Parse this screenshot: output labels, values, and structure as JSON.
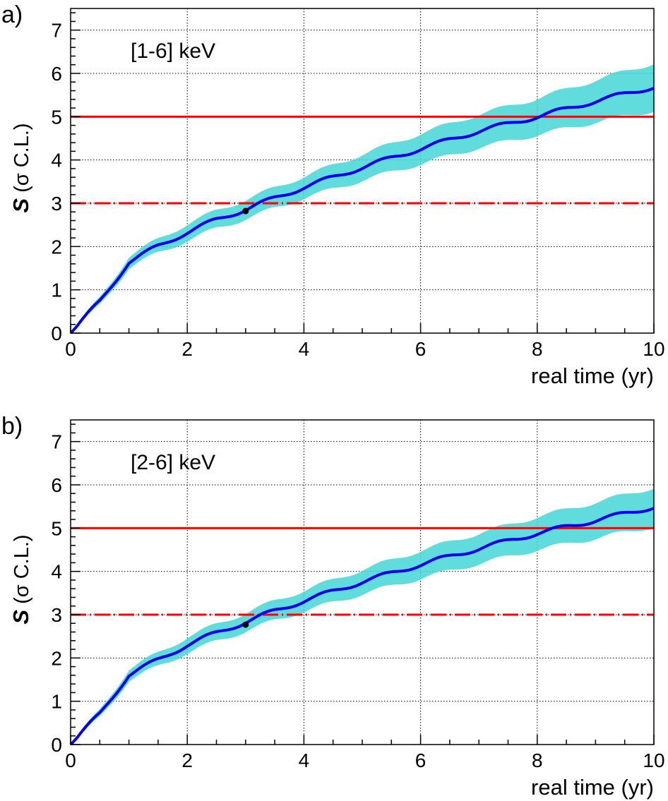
{
  "chart_data": [
    {
      "panel_tag": "a)",
      "type": "line",
      "annotation": "[1-6] keV",
      "xlabel": "real time (yr)",
      "ylabel_symbol": "S",
      "ylabel_unit": "(σ C.L.)",
      "xlim": [
        0,
        10
      ],
      "ylim": [
        0,
        7.5
      ],
      "grid": true,
      "x_ticks": [
        "0",
        "2",
        "4",
        "6",
        "8",
        "10"
      ],
      "y_ticks": [
        "0",
        "1",
        "2",
        "3",
        "4",
        "5",
        "6",
        "7"
      ],
      "reference_lines": [
        {
          "y": 5,
          "style": "solid",
          "color": "#ff0000"
        },
        {
          "y": 3,
          "style": "dash-dot",
          "color": "#ff0000"
        }
      ],
      "point": {
        "x": 3.0,
        "y": 2.82
      },
      "band_color": "#44d6d6",
      "line_color": "#0000ee",
      "curve": {
        "x": [
          0,
          0.5,
          1,
          1.5,
          2,
          2.5,
          3,
          3.5,
          4,
          5,
          6,
          7,
          8,
          9,
          10
        ],
        "y": [
          0,
          0.73,
          1.64,
          2.01,
          2.33,
          2.62,
          2.86,
          3.12,
          3.37,
          3.83,
          4.26,
          4.67,
          5.0,
          5.36,
          5.69
        ]
      },
      "band_halfwidth": {
        "x": [
          0,
          1,
          2,
          4,
          6,
          8,
          10
        ],
        "hw": [
          0.03,
          0.13,
          0.19,
          0.25,
          0.35,
          0.42,
          0.55
        ]
      }
    },
    {
      "panel_tag": "b)",
      "type": "line",
      "annotation": "[2-6] keV",
      "xlabel": "real time (yr)",
      "ylabel_symbol": "S",
      "ylabel_unit": "(σ C.L.)",
      "xlim": [
        0,
        10
      ],
      "ylim": [
        0,
        7.5
      ],
      "grid": true,
      "x_ticks": [
        "0",
        "2",
        "4",
        "6",
        "8",
        "10"
      ],
      "y_ticks": [
        "0",
        "1",
        "2",
        "3",
        "4",
        "5",
        "6",
        "7"
      ],
      "reference_lines": [
        {
          "y": 5,
          "style": "solid",
          "color": "#ff0000"
        },
        {
          "y": 3,
          "style": "dash-dot",
          "color": "#ff0000"
        }
      ],
      "point": {
        "x": 3.0,
        "y": 2.77
      },
      "band_color": "#44d6d6",
      "line_color": "#0000ee",
      "curve": {
        "x": [
          0,
          0.5,
          1,
          1.5,
          2,
          2.5,
          3,
          3.5,
          4,
          5,
          6,
          7,
          8,
          9,
          10
        ],
        "y": [
          0,
          0.71,
          1.61,
          1.96,
          2.3,
          2.58,
          2.83,
          3.09,
          3.32,
          3.76,
          4.16,
          4.53,
          4.88,
          5.18,
          5.49
        ]
      },
      "band_halfwidth": {
        "x": [
          0,
          1,
          2,
          4,
          6,
          8,
          10
        ],
        "hw": [
          0.03,
          0.13,
          0.18,
          0.24,
          0.32,
          0.38,
          0.45
        ]
      }
    }
  ]
}
